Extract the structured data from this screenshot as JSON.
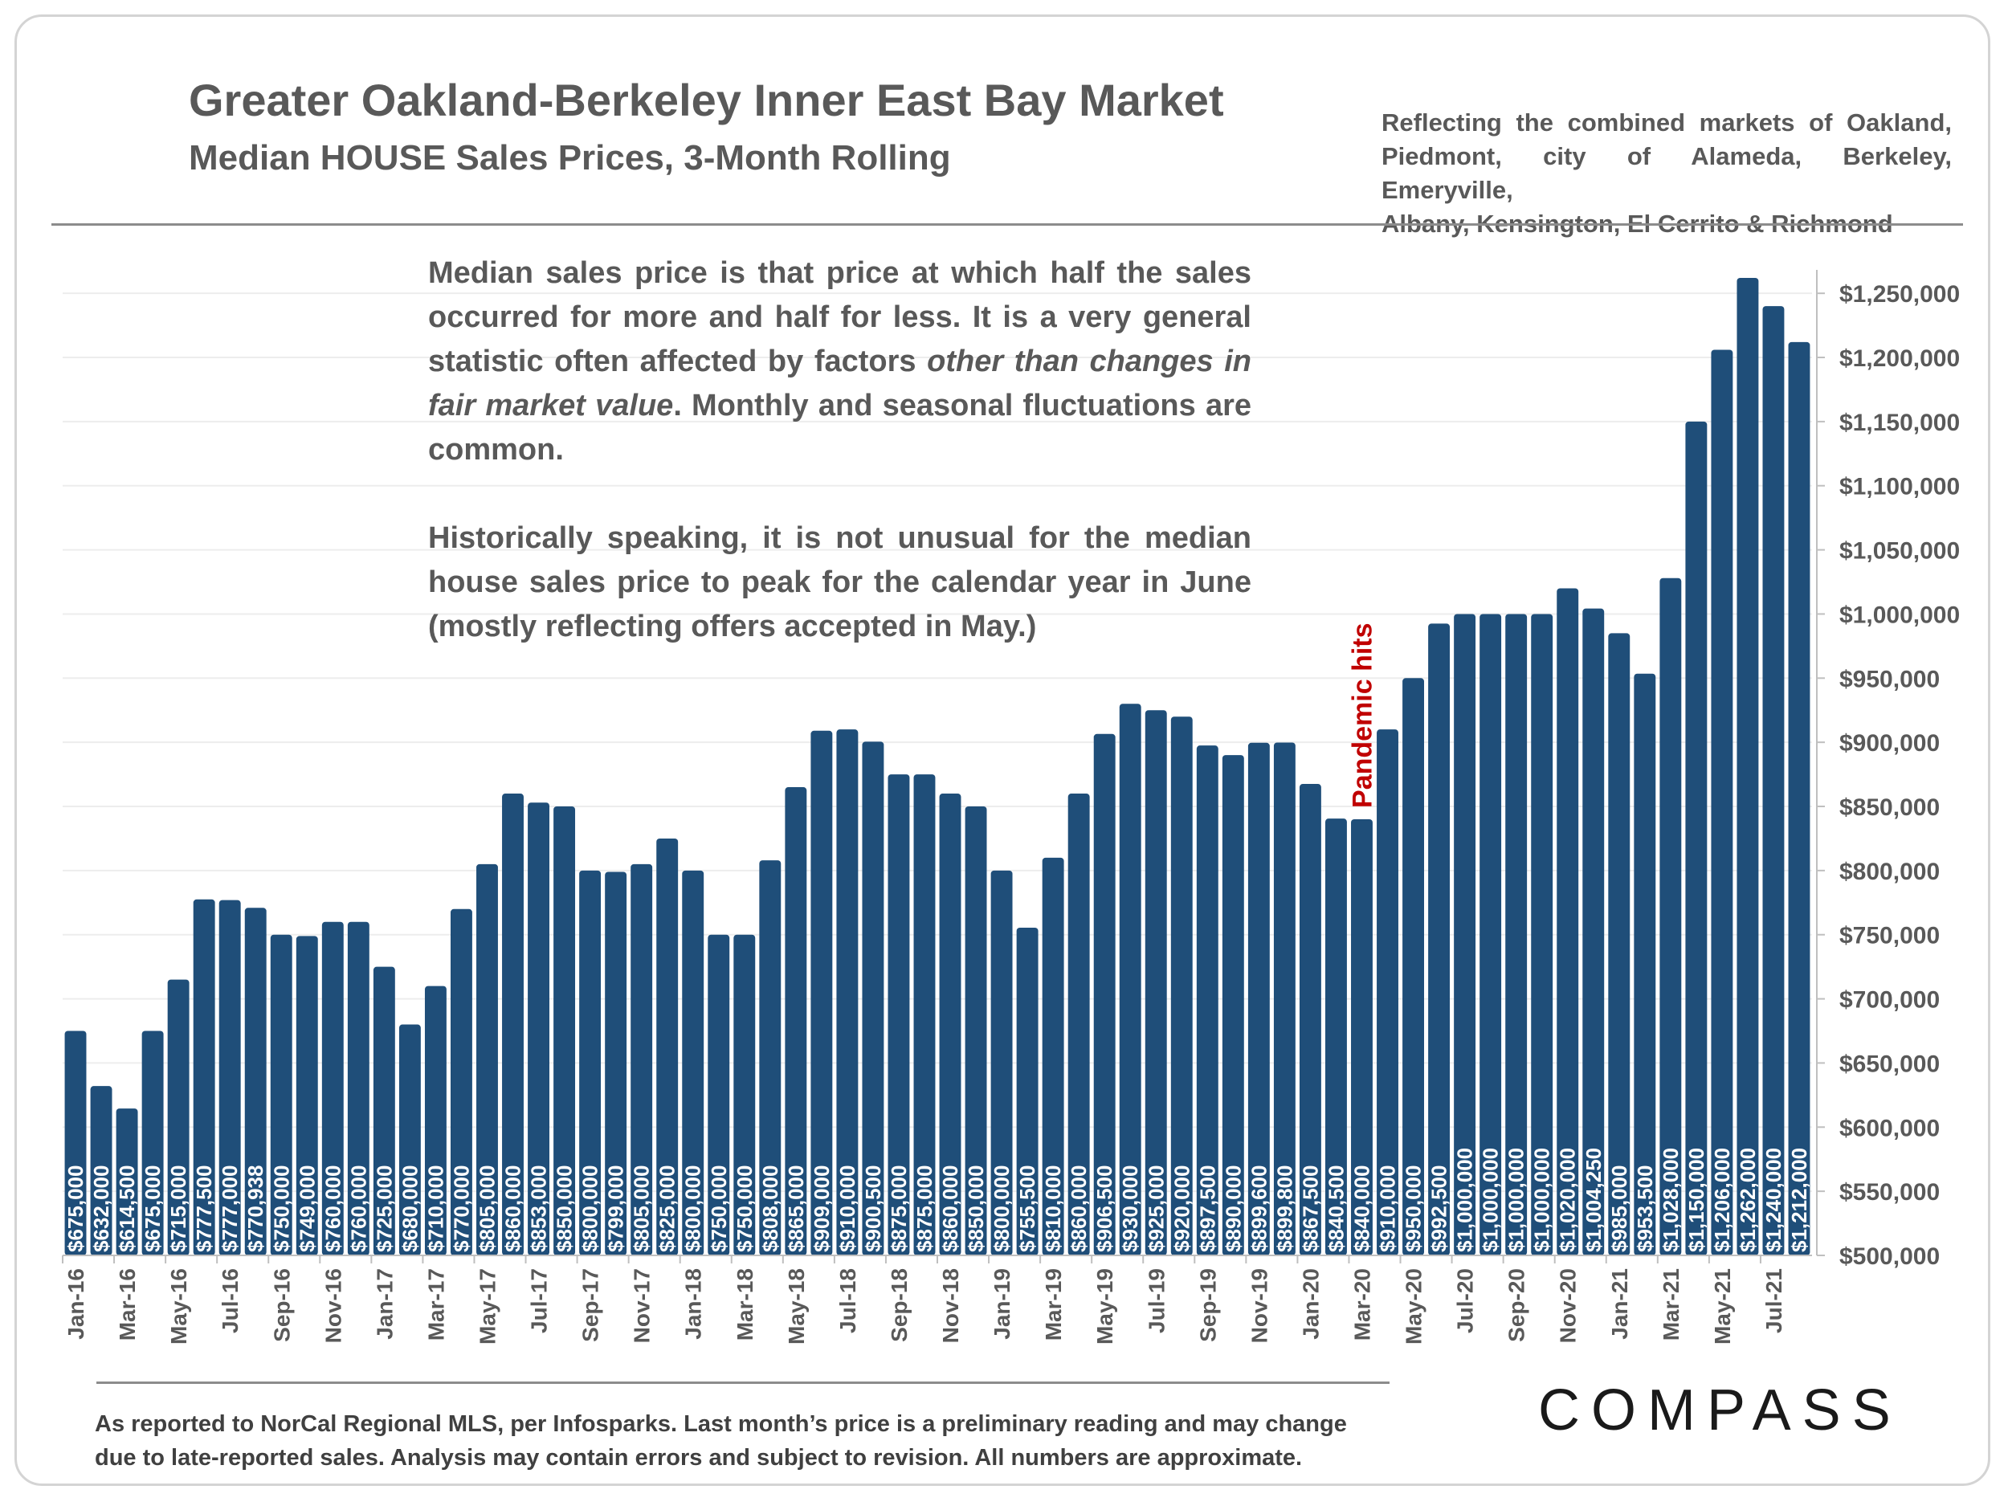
{
  "header": {
    "title": "Greater Oakland-Berkeley Inner East Bay Market",
    "subtitle": "Median HOUSE Sales Prices, 3-Month Rolling",
    "note_lines": [
      "Reflecting the combined markets of Oakland,",
      "Piedmont, city of Alameda, Berkeley, Emeryville,",
      "Albany, Kensington, El Cerrito & Richmond"
    ]
  },
  "explanation": {
    "p1_a": "Median sales price is that price at which half the sales occurred for more and half for less. It is a very general statistic often affected by factors ",
    "p1_em": "other than changes in fair market value",
    "p1_b": ". Monthly and seasonal fluctuations are common.",
    "p2": "Historically speaking, it is not  unusual for the median house sales price to peak for the calendar year in June (mostly reflecting offers accepted in May.)"
  },
  "footer": {
    "line1": "As reported to NorCal Regional MLS, per Infosparks. Last month’s price is a preliminary reading and may change",
    "line2": "due to late-reported sales. Analysis may contain errors and subject to revision. All numbers are approximate."
  },
  "brand": {
    "logo": "COMPASS"
  },
  "colors": {
    "bar": "#1f4e79",
    "annotation": "#c00000",
    "text": "#595959",
    "grid": "#ededed"
  },
  "chart_data": {
    "type": "bar",
    "title": "Median HOUSE Sales Prices, 3-Month Rolling",
    "xlabel": "",
    "ylabel": "",
    "ylim": [
      500000,
      1262000
    ],
    "y_ticks": [
      500000,
      550000,
      600000,
      650000,
      700000,
      750000,
      800000,
      850000,
      900000,
      950000,
      1000000,
      1050000,
      1100000,
      1150000,
      1200000,
      1250000
    ],
    "y_tick_labels": [
      "$500,000",
      "$550,000",
      "$600,000",
      "$650,000",
      "$700,000",
      "$750,000",
      "$800,000",
      "$850,000",
      "$900,000",
      "$950,000",
      "$1,000,000",
      "$1,050,000",
      "$1,100,000",
      "$1,150,000",
      "$1,200,000",
      "$1,250,000"
    ],
    "x_tick_labels": [
      "Jan-16",
      "Mar-16",
      "May-16",
      "Jul-16",
      "Sep-16",
      "Nov-16",
      "Jan-17",
      "Mar-17",
      "May-17",
      "Jul-17",
      "Sep-17",
      "Nov-17",
      "Jan-18",
      "Mar-18",
      "May-18",
      "Jul-18",
      "Sep-18",
      "Nov-18",
      "Jan-19",
      "Mar-19",
      "May-19",
      "Jul-19",
      "Sep-19",
      "Nov-19",
      "Jan-20",
      "Mar-20",
      "May-20",
      "Jul-20",
      "Sep-20",
      "Nov-20",
      "Jan-21",
      "Mar-21",
      "May-21",
      "Jul-21"
    ],
    "values": [
      675000,
      632000,
      614500,
      675000,
      715000,
      777500,
      777000,
      770938,
      750000,
      749000,
      760000,
      760000,
      725000,
      680000,
      710000,
      770000,
      805000,
      860000,
      853000,
      850000,
      800000,
      799000,
      805000,
      825000,
      800000,
      750000,
      750000,
      808000,
      865000,
      909000,
      910000,
      900500,
      875000,
      875000,
      860000,
      850000,
      800000,
      755500,
      810000,
      860000,
      906500,
      930000,
      925000,
      920000,
      897500,
      890000,
      899600,
      899800,
      867500,
      840500,
      840000,
      910000,
      950000,
      992500,
      1000000,
      1000000,
      1000000,
      1000000,
      1020000,
      1004250,
      985000,
      953500,
      1028000,
      1150000,
      1206000,
      1262000,
      1240000,
      1212000
    ],
    "value_labels": [
      "$675,000",
      "$632,000",
      "$614,500",
      "$675,000",
      "$715,000",
      "$777,500",
      "$777,000",
      "$770,938",
      "$750,000",
      "$749,000",
      "$760,000",
      "$760,000",
      "$725,000",
      "$680,000",
      "$710,000",
      "$770,000",
      "$805,000",
      "$860,000",
      "$853,000",
      "$850,000",
      "$800,000",
      "$799,000",
      "$805,000",
      "$825,000",
      "$800,000",
      "$750,000",
      "$750,000",
      "$808,000",
      "$865,000",
      "$909,000",
      "$910,000",
      "$900,500",
      "$875,000",
      "$875,000",
      "$860,000",
      "$850,000",
      "$800,000",
      "$755,500",
      "$810,000",
      "$860,000",
      "$906,500",
      "$930,000",
      "$925,000",
      "$920,000",
      "$897,500",
      "$890,000",
      "$899,600",
      "$899,800",
      "$867,500",
      "$840,500",
      "$840,000",
      "$910,000",
      "$950,000",
      "$992,500",
      "$1,000,000",
      "$1,000,000",
      "$1,000,000",
      "$1,000,000",
      "$1,020,000",
      "$1,004,250",
      "$985,000",
      "$953,500",
      "$1,028,000",
      "$1,150,000",
      "$1,206,000",
      "$1,262,000",
      "$1,240,000",
      "$1,212,000"
    ],
    "annotation": {
      "text": "Pandemic hits",
      "near_category_index": 50
    },
    "grid": true,
    "y_axis_position": "right"
  }
}
